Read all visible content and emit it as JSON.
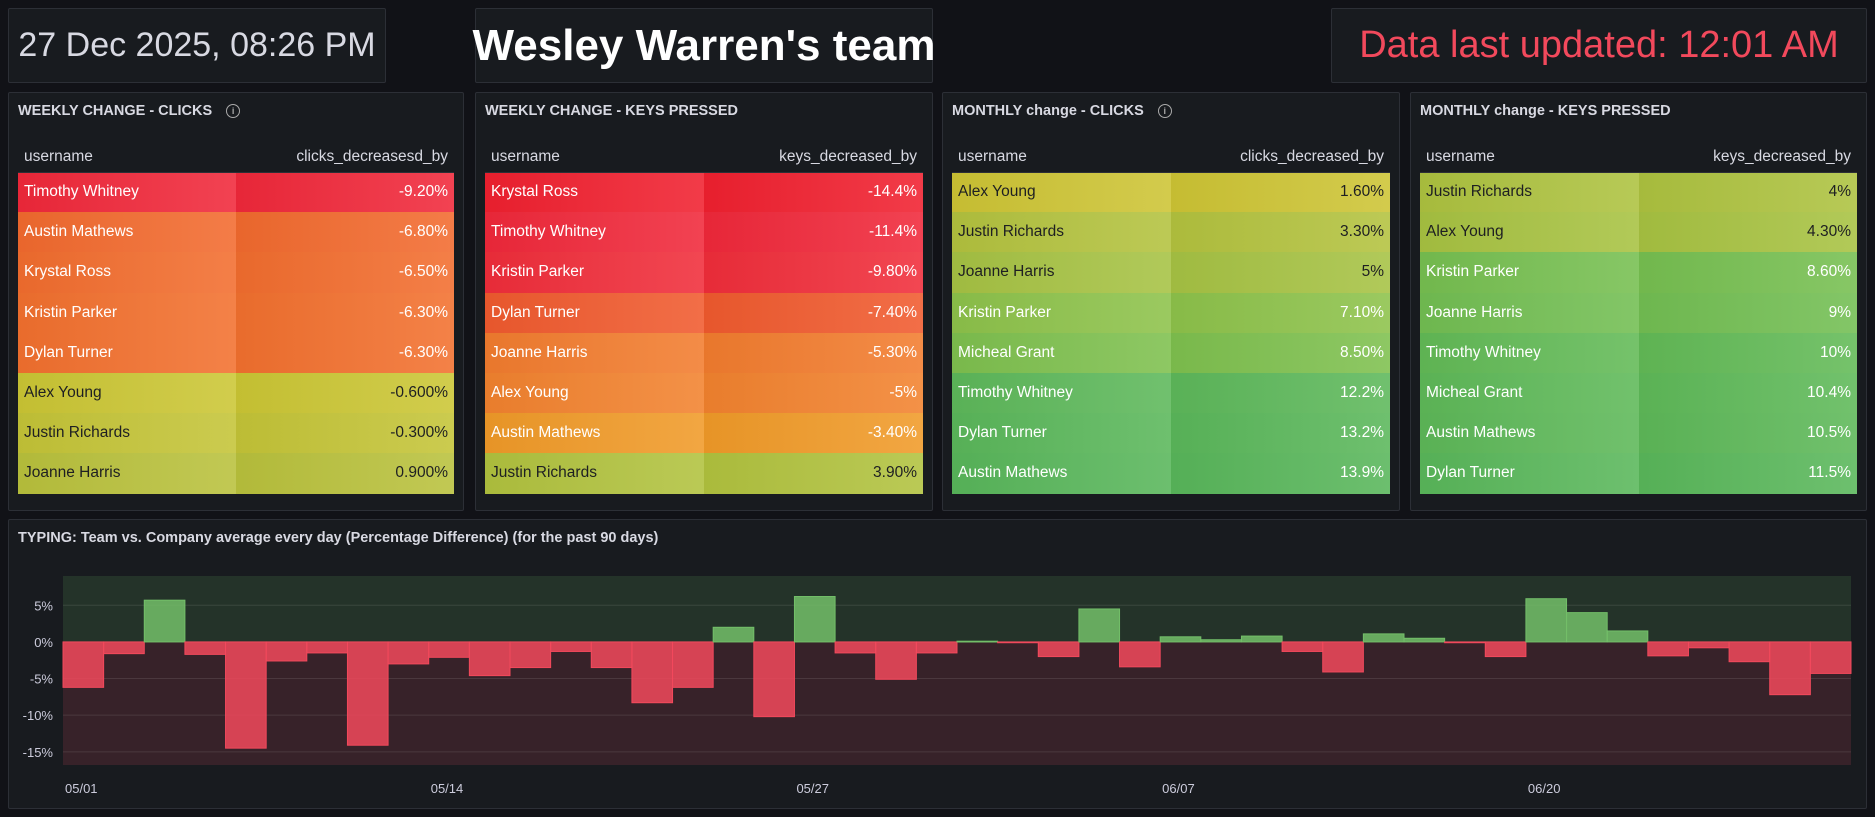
{
  "header": {
    "datetime": "27 Dec 2025, 08:26 PM",
    "team_title": "Wesley Warren's team",
    "last_updated": "Data last updated: 12:01 AM",
    "last_updated_color": "#f2495c"
  },
  "panels": [
    {
      "title": "WEEKLY CHANGE - CLICKS",
      "info_icon": true,
      "columns": [
        "username",
        "clicks_decreasesd_by"
      ],
      "rows": [
        [
          "Timothy Whitney",
          "-9.20%",
          "#f0283a",
          "light"
        ],
        [
          "Austin Mathews",
          "-6.80%",
          "#f26a2e",
          "light"
        ],
        [
          "Krystal Ross",
          "-6.50%",
          "#f26d2e",
          "light"
        ],
        [
          "Kristin Parker",
          "-6.30%",
          "#f2702e",
          "light"
        ],
        [
          "Dylan Turner",
          "-6.30%",
          "#f2702e",
          "light"
        ],
        [
          "Alex Young",
          "-0.600%",
          "#cbc634",
          "dark"
        ],
        [
          "Justin Richards",
          "-0.300%",
          "#c4c437",
          "dark"
        ],
        [
          "Joanne Harris",
          "0.900%",
          "#b9c13c",
          "dark"
        ]
      ]
    },
    {
      "title": "WEEKLY CHANGE - KEYS PRESSED",
      "info_icon": false,
      "columns": [
        "username",
        "keys_decreased_by"
      ],
      "rows": [
        [
          "Krystal Ross",
          "-14.4%",
          "#f0202f",
          "light"
        ],
        [
          "Timothy Whitney",
          "-11.4%",
          "#f0283a",
          "light"
        ],
        [
          "Kristin Parker",
          "-9.80%",
          "#f02d3a",
          "light"
        ],
        [
          "Dylan Turner",
          "-7.40%",
          "#f05a2e",
          "light"
        ],
        [
          "Joanne Harris",
          "-5.30%",
          "#f27c2e",
          "light"
        ],
        [
          "Alex Young",
          "-5%",
          "#f2822e",
          "light"
        ],
        [
          "Austin Mathews",
          "-3.40%",
          "#f09a28",
          "light"
        ],
        [
          "Justin Richards",
          "3.90%",
          "#b1c23e",
          "dark"
        ]
      ]
    },
    {
      "title": "MONTHLY change - CLICKS",
      "info_icon": true,
      "columns": [
        "username",
        "clicks_decreased_by"
      ],
      "rows": [
        [
          "Alex Young",
          "1.60%",
          "#cdc434",
          "dark"
        ],
        [
          "Justin Richards",
          "3.30%",
          "#b3c23e",
          "dark"
        ],
        [
          "Joanne Harris",
          "5%",
          "#a6c243",
          "dark"
        ],
        [
          "Kristin Parker",
          "7.10%",
          "#8dc24a",
          "light"
        ],
        [
          "Micheal Grant",
          "8.50%",
          "#7ec04e",
          "light"
        ],
        [
          "Timothy Whitney",
          "12.2%",
          "#5db85a",
          "light"
        ],
        [
          "Dylan Turner",
          "13.2%",
          "#5ab75a",
          "light"
        ],
        [
          "Austin Mathews",
          "13.9%",
          "#58b65a",
          "light"
        ]
      ]
    },
    {
      "title": "MONTHLY change - KEYS PRESSED",
      "info_icon": false,
      "columns": [
        "username",
        "keys_decreased_by"
      ],
      "rows": [
        [
          "Justin Richards",
          "4%",
          "#adc23f",
          "dark"
        ],
        [
          "Alex Young",
          "4.30%",
          "#a7c241",
          "dark"
        ],
        [
          "Kristin Parker",
          "8.60%",
          "#76bf50",
          "light"
        ],
        [
          "Joanne Harris",
          "9%",
          "#72be52",
          "light"
        ],
        [
          "Timothy Whitney",
          "10%",
          "#62ba56",
          "light"
        ],
        [
          "Micheal Grant",
          "10.4%",
          "#5eb958",
          "light"
        ],
        [
          "Austin Mathews",
          "10.5%",
          "#5db858",
          "light"
        ],
        [
          "Dylan Turner",
          "11.5%",
          "#59b75a",
          "light"
        ]
      ]
    }
  ],
  "chart_data": {
    "type": "bar",
    "title": "TYPING: Team vs. Company average every day (Percentage Difference) (for the past 90 days)",
    "values": [
      -6.2,
      -1.6,
      5.7,
      -1.7,
      -14.5,
      -2.6,
      -1.5,
      -14.1,
      -3.0,
      -2.1,
      -4.6,
      -3.5,
      -1.3,
      -3.5,
      -8.3,
      -6.2,
      2.0,
      -10.2,
      6.2,
      -1.5,
      -5.1,
      -1.5,
      0.1,
      -0.1,
      -2.0,
      4.5,
      -3.4,
      0.7,
      0.3,
      0.8,
      -1.3,
      -4.1,
      1.1,
      0.5,
      -0.1,
      -2.0,
      5.9,
      4.0,
      1.5,
      -1.9,
      -0.8,
      -2.7,
      -7.2,
      -4.3
    ],
    "x_ticks": [
      {
        "label": "05/01",
        "index": 0
      },
      {
        "label": "05/14",
        "index": 9
      },
      {
        "label": "05/27",
        "index": 18
      },
      {
        "label": "06/07",
        "index": 27
      },
      {
        "label": "06/20",
        "index": 36
      }
    ],
    "y_ticks": [
      {
        "label": "5%",
        "value": 5
      },
      {
        "label": "0%",
        "value": 0
      },
      {
        "label": "-5%",
        "value": -5
      },
      {
        "label": "-10%",
        "value": -10
      },
      {
        "label": "-15%",
        "value": -15
      }
    ],
    "ylim": [
      -16.8,
      9
    ],
    "grid": true,
    "positive_color": "#73bf69",
    "negative_color": "#f2495c",
    "positive_region_color": "#243329",
    "negative_region_color": "#372229"
  }
}
